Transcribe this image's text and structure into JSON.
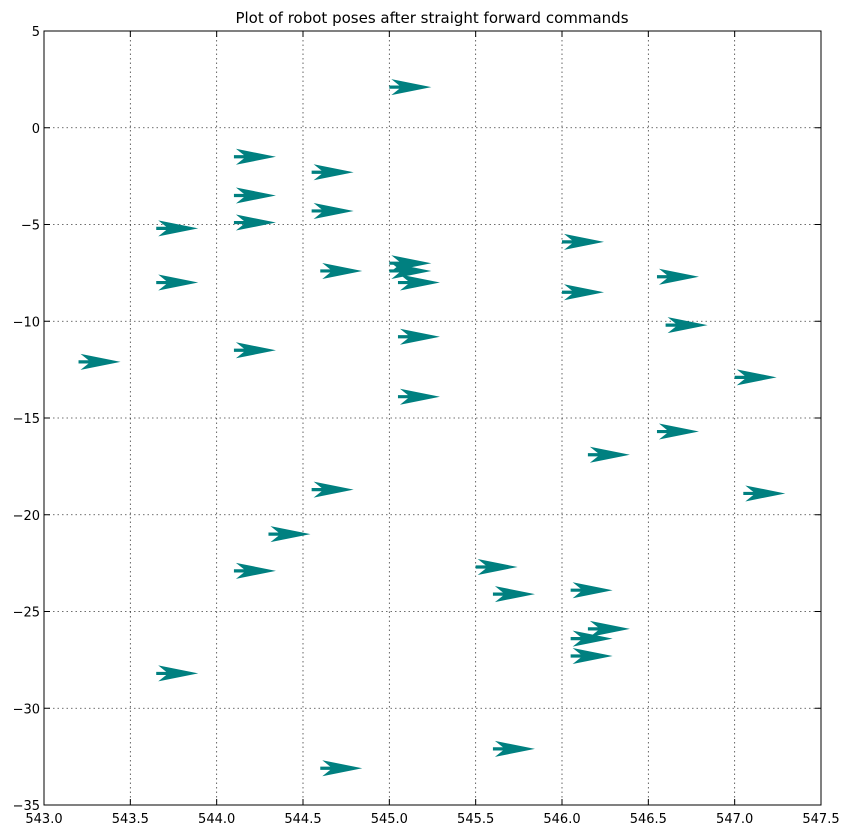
{
  "chart_data": {
    "type": "scatter",
    "title": "Plot of robot poses after straight forward commands",
    "xlabel": "",
    "ylabel": "",
    "xlim": [
      543.0,
      547.5
    ],
    "ylim": [
      -35,
      5
    ],
    "grid": true,
    "marker": "right-pointing arrow (quiver)",
    "marker_color": "#008080",
    "x_ticks": [
      "543.0",
      "543.5",
      "544.0",
      "544.5",
      "545.0",
      "545.5",
      "546.0",
      "546.5",
      "547.0",
      "547.5"
    ],
    "x_tick_values": [
      543.0,
      543.5,
      544.0,
      544.5,
      545.0,
      545.5,
      546.0,
      546.5,
      547.0,
      547.5
    ],
    "y_ticks": [
      "5",
      "0",
      "−5",
      "−10",
      "−15",
      "−20",
      "−25",
      "−30",
      "−35"
    ],
    "y_tick_values": [
      5,
      0,
      -5,
      -10,
      -15,
      -20,
      -25,
      -30,
      -35
    ],
    "points": [
      {
        "x": 545.0,
        "y": 2.1
      },
      {
        "x": 544.1,
        "y": -1.5
      },
      {
        "x": 544.55,
        "y": -2.3
      },
      {
        "x": 544.1,
        "y": -3.5
      },
      {
        "x": 544.55,
        "y": -4.3
      },
      {
        "x": 544.1,
        "y": -4.9
      },
      {
        "x": 543.65,
        "y": -5.2
      },
      {
        "x": 546.0,
        "y": -5.9
      },
      {
        "x": 545.0,
        "y": -7.0
      },
      {
        "x": 544.6,
        "y": -7.4
      },
      {
        "x": 545.0,
        "y": -7.4
      },
      {
        "x": 546.55,
        "y": -7.7
      },
      {
        "x": 543.65,
        "y": -8.0
      },
      {
        "x": 545.05,
        "y": -8.0
      },
      {
        "x": 546.0,
        "y": -8.5
      },
      {
        "x": 546.6,
        "y": -10.2
      },
      {
        "x": 545.05,
        "y": -10.8
      },
      {
        "x": 544.1,
        "y": -11.5
      },
      {
        "x": 543.2,
        "y": -12.1
      },
      {
        "x": 547.0,
        "y": -12.9
      },
      {
        "x": 545.05,
        "y": -13.9
      },
      {
        "x": 546.55,
        "y": -15.7
      },
      {
        "x": 546.15,
        "y": -16.9
      },
      {
        "x": 544.55,
        "y": -18.7
      },
      {
        "x": 547.05,
        "y": -18.9
      },
      {
        "x": 544.3,
        "y": -21.0
      },
      {
        "x": 545.5,
        "y": -22.7
      },
      {
        "x": 544.1,
        "y": -22.9
      },
      {
        "x": 545.6,
        "y": -24.1
      },
      {
        "x": 546.05,
        "y": -23.9
      },
      {
        "x": 546.15,
        "y": -25.9
      },
      {
        "x": 546.05,
        "y": -26.4
      },
      {
        "x": 546.05,
        "y": -27.3
      },
      {
        "x": 543.65,
        "y": -28.2
      },
      {
        "x": 545.6,
        "y": -32.1
      },
      {
        "x": 544.6,
        "y": -33.1
      }
    ]
  }
}
